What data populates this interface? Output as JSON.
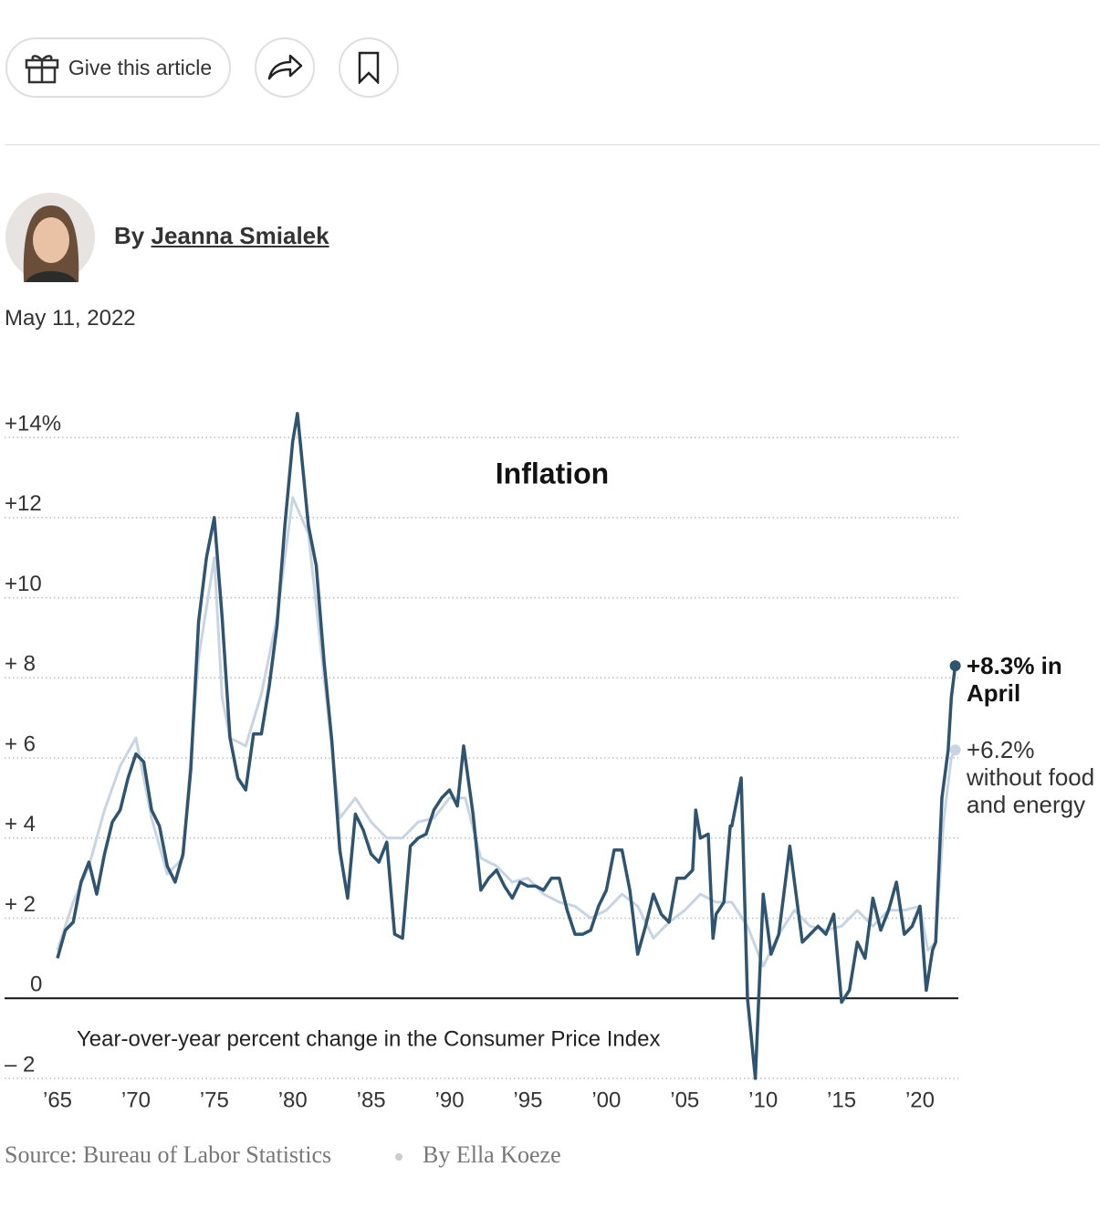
{
  "toolbar": {
    "gift_button": "Give this article"
  },
  "byline": {
    "prefix": "By",
    "author": "Jeanna Smialek"
  },
  "date": "May 11, 2022",
  "chart_data": {
    "type": "line",
    "title": "Inflation",
    "subtitle": "Year-over-year percent change in the Consumer Price Index",
    "xlim": [
      1965,
      2022.3
    ],
    "ylim": [
      -2,
      14.8
    ],
    "grid": true,
    "xticks": [
      {
        "value": 1965,
        "label": "’65"
      },
      {
        "value": 1970,
        "label": "’70"
      },
      {
        "value": 1975,
        "label": "’75"
      },
      {
        "value": 1980,
        "label": "’80"
      },
      {
        "value": 1985,
        "label": "’85"
      },
      {
        "value": 1990,
        "label": "’90"
      },
      {
        "value": 1995,
        "label": "’95"
      },
      {
        "value": 2000,
        "label": "’00"
      },
      {
        "value": 2005,
        "label": "’05"
      },
      {
        "value": 2010,
        "label": "’10"
      },
      {
        "value": 2015,
        "label": "’15"
      },
      {
        "value": 2020,
        "label": "’20"
      }
    ],
    "yticks": [
      {
        "value": 14,
        "label": "+14%"
      },
      {
        "value": 12,
        "label": "+12"
      },
      {
        "value": 10,
        "label": "+10"
      },
      {
        "value": 8,
        "label": "+ 8"
      },
      {
        "value": 6,
        "label": "+ 6"
      },
      {
        "value": 4,
        "label": "+ 4"
      },
      {
        "value": 2,
        "label": "+ 2"
      },
      0,
      {
        "value": -2,
        "label": "– 2"
      }
    ],
    "series": [
      {
        "color": "#c9d4e3",
        "x": [
          1965,
          1966,
          1967,
          1968,
          1969,
          1970,
          1971,
          1972,
          1973,
          1974,
          1975,
          1975.5,
          1976,
          1977,
          1978,
          1979,
          1980,
          1981,
          1982,
          1983,
          1984,
          1985,
          1986,
          1987,
          1988,
          1989,
          1990,
          1991,
          1992,
          1993,
          1994,
          1995,
          1996,
          1997,
          1998,
          1999,
          2000,
          2001,
          2002,
          2003,
          2004,
          2005,
          2006,
          2007,
          2008,
          2009,
          2010,
          2011,
          2012,
          2013,
          2014,
          2015,
          2016,
          2017,
          2018,
          2019,
          2020,
          2020.5,
          2021,
          2021.5,
          2022,
          2022.25
        ],
        "values": [
          1.2,
          2.4,
          3.3,
          4.7,
          5.8,
          6.5,
          4.5,
          3.1,
          3.5,
          8.5,
          11.0,
          7.5,
          6.5,
          6.3,
          7.6,
          9.5,
          12.5,
          11.6,
          8.0,
          4.5,
          5.0,
          4.4,
          4.0,
          4.0,
          4.4,
          4.5,
          5.0,
          5.0,
          3.5,
          3.3,
          2.9,
          3.0,
          2.6,
          2.4,
          2.3,
          2.0,
          2.2,
          2.6,
          2.3,
          1.5,
          1.9,
          2.2,
          2.6,
          2.4,
          2.4,
          1.8,
          0.8,
          1.6,
          2.2,
          1.8,
          1.7,
          1.8,
          2.2,
          1.8,
          2.2,
          2.2,
          2.3,
          1.2,
          1.4,
          4.4,
          6.0,
          6.2
        ]
      },
      {
        "color": "#2f5470",
        "x": [
          1965.0,
          1965.5,
          1966.0,
          1966.5,
          1967.0,
          1967.5,
          1968.0,
          1968.5,
          1969.0,
          1969.5,
          1970.0,
          1970.5,
          1971.0,
          1971.5,
          1972.0,
          1972.5,
          1973.0,
          1973.5,
          1974.0,
          1974.5,
          1975.0,
          1975.5,
          1976.0,
          1976.5,
          1977.0,
          1977.5,
          1978.0,
          1978.5,
          1979.0,
          1979.5,
          1980.0,
          1980.3,
          1980.8,
          1981.0,
          1981.5,
          1982.0,
          1982.5,
          1983.0,
          1983.5,
          1984.0,
          1984.5,
          1985.0,
          1985.5,
          1986.0,
          1986.5,
          1987.0,
          1987.5,
          1988.0,
          1988.5,
          1989.0,
          1989.5,
          1990.0,
          1990.5,
          1990.9,
          1991.5,
          1992.0,
          1992.5,
          1993.0,
          1993.5,
          1994.0,
          1994.5,
          1995.0,
          1995.5,
          1996.0,
          1996.5,
          1997.0,
          1997.5,
          1998.0,
          1998.5,
          1999.0,
          1999.5,
          2000.0,
          2000.5,
          2001.0,
          2001.5,
          2002.0,
          2002.5,
          2003.0,
          2003.5,
          2004.0,
          2004.5,
          2005.0,
          2005.5,
          2005.7,
          2006.0,
          2006.5,
          2006.8,
          2007.0,
          2007.5,
          2007.9,
          2008.0,
          2008.6,
          2009.0,
          2009.5,
          2010.0,
          2010.5,
          2011.0,
          2011.7,
          2012.0,
          2012.5,
          2013.0,
          2013.5,
          2014.0,
          2014.5,
          2015.0,
          2015.5,
          2016.0,
          2016.5,
          2017.0,
          2017.5,
          2018.0,
          2018.5,
          2019.0,
          2019.5,
          2020.0,
          2020.4,
          2020.8,
          2021.0,
          2021.4,
          2021.8,
          2022.0,
          2022.25
        ],
        "values": [
          1.0,
          1.7,
          1.9,
          2.9,
          3.4,
          2.6,
          3.6,
          4.4,
          4.7,
          5.5,
          6.1,
          5.9,
          4.7,
          4.3,
          3.3,
          2.9,
          3.6,
          5.7,
          9.4,
          11.0,
          12.0,
          9.5,
          6.5,
          5.5,
          5.2,
          6.6,
          6.6,
          7.8,
          9.3,
          11.8,
          13.9,
          14.6,
          12.6,
          11.8,
          10.8,
          8.4,
          6.4,
          3.7,
          2.5,
          4.6,
          4.2,
          3.6,
          3.4,
          3.9,
          1.6,
          1.5,
          3.8,
          4.0,
          4.1,
          4.7,
          5.0,
          5.2,
          4.8,
          6.3,
          4.6,
          2.7,
          3.0,
          3.2,
          2.8,
          2.5,
          2.9,
          2.8,
          2.8,
          2.7,
          3.0,
          3.0,
          2.2,
          1.6,
          1.6,
          1.7,
          2.3,
          2.7,
          3.7,
          3.7,
          2.7,
          1.1,
          1.8,
          2.6,
          2.1,
          1.9,
          3.0,
          3.0,
          3.2,
          4.7,
          4.0,
          4.1,
          1.5,
          2.1,
          2.4,
          4.3,
          4.3,
          5.5,
          0.0,
          -2.0,
          2.6,
          1.1,
          1.6,
          3.8,
          2.9,
          1.4,
          1.6,
          1.8,
          1.6,
          2.1,
          -0.1,
          0.2,
          1.4,
          1.0,
          2.5,
          1.7,
          2.2,
          2.9,
          1.6,
          1.8,
          2.3,
          0.2,
          1.2,
          1.4,
          5.0,
          6.2,
          7.5,
          8.3
        ]
      }
    ],
    "annotations": [
      {
        "series": 1,
        "text": "+8.3% in April"
      },
      {
        "series": 0,
        "text": "+6.2% without food and energy"
      }
    ]
  },
  "footer": {
    "source": "Source: Bureau of Labor Statistics",
    "credit": "By Ella Koeze"
  }
}
